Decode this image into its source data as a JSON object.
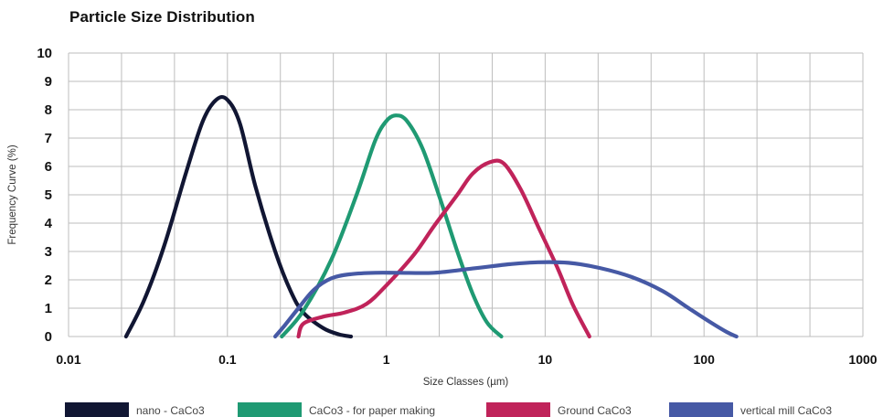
{
  "chart_data": {
    "type": "line",
    "title": "Particle Size Distribution",
    "xlabel": "Size Classes (µm)",
    "ylabel": "Frequency Curve (%)",
    "x_scale": "log",
    "xlim": [
      0.01,
      1000
    ],
    "ylim": [
      0,
      10
    ],
    "x_ticks": [
      "0.01",
      "0.1",
      "1",
      "10",
      "100",
      "1000"
    ],
    "y_ticks": [
      "0",
      "1",
      "2",
      "3",
      "4",
      "5",
      "6",
      "7",
      "8",
      "9",
      "10"
    ],
    "grid": true,
    "legend_position": "bottom",
    "series": [
      {
        "name": "nano - CaCo3",
        "color": "#111633",
        "points": [
          [
            0.023,
            0
          ],
          [
            0.03,
            1.3
          ],
          [
            0.04,
            3.2
          ],
          [
            0.055,
            5.8
          ],
          [
            0.07,
            7.6
          ],
          [
            0.085,
            8.35
          ],
          [
            0.1,
            8.35
          ],
          [
            0.12,
            7.5
          ],
          [
            0.15,
            5.3
          ],
          [
            0.2,
            3.0
          ],
          [
            0.25,
            1.6
          ],
          [
            0.3,
            0.85
          ],
          [
            0.4,
            0.3
          ],
          [
            0.5,
            0.08
          ],
          [
            0.6,
            0
          ]
        ]
      },
      {
        "name": "CaCo3 - for paper making",
        "color": "#1f9a73",
        "points": [
          [
            0.22,
            0
          ],
          [
            0.3,
            0.9
          ],
          [
            0.45,
            2.7
          ],
          [
            0.65,
            5.0
          ],
          [
            0.85,
            6.9
          ],
          [
            1.0,
            7.6
          ],
          [
            1.15,
            7.8
          ],
          [
            1.35,
            7.6
          ],
          [
            1.7,
            6.6
          ],
          [
            2.2,
            4.8
          ],
          [
            2.8,
            3.0
          ],
          [
            3.5,
            1.5
          ],
          [
            4.3,
            0.5
          ],
          [
            5.3,
            0
          ]
        ]
      },
      {
        "name": "Ground CaCo3",
        "color": "#c0235a",
        "points": [
          [
            0.28,
            0
          ],
          [
            0.3,
            0.45
          ],
          [
            0.4,
            0.7
          ],
          [
            0.55,
            0.85
          ],
          [
            0.75,
            1.15
          ],
          [
            1.0,
            1.8
          ],
          [
            1.5,
            2.9
          ],
          [
            2.0,
            3.9
          ],
          [
            2.8,
            5.0
          ],
          [
            3.5,
            5.75
          ],
          [
            4.5,
            6.15
          ],
          [
            5.5,
            6.1
          ],
          [
            7,
            5.2
          ],
          [
            9,
            3.9
          ],
          [
            12,
            2.4
          ],
          [
            15,
            1.1
          ],
          [
            19,
            0
          ]
        ]
      },
      {
        "name": "vertical mill CaCo3",
        "color": "#4659a5",
        "points": [
          [
            0.2,
            0
          ],
          [
            0.23,
            0.4
          ],
          [
            0.28,
            1.0
          ],
          [
            0.35,
            1.65
          ],
          [
            0.45,
            2.05
          ],
          [
            0.6,
            2.2
          ],
          [
            0.85,
            2.25
          ],
          [
            1.2,
            2.25
          ],
          [
            2.0,
            2.25
          ],
          [
            3.5,
            2.4
          ],
          [
            6,
            2.55
          ],
          [
            9,
            2.62
          ],
          [
            14,
            2.6
          ],
          [
            22,
            2.42
          ],
          [
            35,
            2.1
          ],
          [
            55,
            1.6
          ],
          [
            80,
            1.0
          ],
          [
            110,
            0.5
          ],
          [
            140,
            0.15
          ],
          [
            160,
            0
          ]
        ]
      }
    ]
  }
}
